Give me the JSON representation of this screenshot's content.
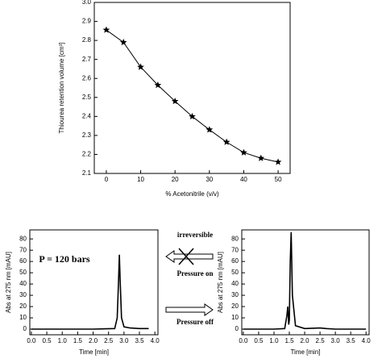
{
  "chart_data": [
    {
      "type": "line",
      "marker": "star",
      "xlabel": "% Acetonitrile  (v/v)",
      "ylabel": "Thiourea retention volume  [cm³]",
      "x": [
        0,
        5,
        10,
        15,
        20,
        25,
        30,
        35,
        40,
        45,
        50
      ],
      "series": [
        {
          "color": "#000000",
          "values": [
            2.855,
            2.79,
            2.66,
            2.565,
            2.48,
            2.4,
            2.33,
            2.265,
            2.21,
            2.18,
            2.16
          ]
        }
      ],
      "xlim": [
        -3.5,
        53.5
      ],
      "xticks": [
        0,
        10,
        20,
        30,
        40,
        50
      ],
      "ylim": [
        2.1,
        3.0
      ],
      "yticks": [
        2.1,
        2.2,
        2.3,
        2.4,
        2.5,
        2.6,
        2.7,
        2.8,
        2.9,
        {
          "value": 3,
          "label": "3.0"
        }
      ],
      "grid": false
    },
    {
      "type": "line",
      "xlabel": "Time  [min]",
      "ylabel": "Abs at 275 nm  [mAU]",
      "annotation": "P = 120 bars",
      "x": [
        0,
        1,
        2,
        2.7,
        2.78,
        2.82,
        2.85,
        2.88,
        2.92,
        3.0,
        3.2,
        3.5,
        3.8
      ],
      "series": [
        {
          "color": "#000000",
          "values": [
            0,
            0,
            0,
            0.5,
            10,
            40,
            66,
            40,
            10,
            2,
            1,
            0.5,
            0.5
          ]
        }
      ],
      "xlim": [
        -0.05,
        4.1
      ],
      "xticks": [
        {
          "value": 0,
          "label": "0.0"
        },
        0.5,
        {
          "value": 1,
          "label": "1.0"
        },
        1.5,
        {
          "value": 2,
          "label": "2.0"
        },
        2.5,
        {
          "value": 3,
          "label": "3.0"
        },
        3.5,
        {
          "value": 4,
          "label": "4.0"
        }
      ],
      "ylim": [
        -5,
        88
      ],
      "yticks": [
        0,
        10,
        20,
        30,
        40,
        50,
        60,
        70,
        80
      ],
      "grid": false
    },
    {
      "type": "line",
      "xlabel": "Time  [min]",
      "ylabel": "Abs at 275 nm  [mAU]",
      "x": [
        0,
        1,
        1.35,
        1.42,
        1.45,
        1.48,
        1.5,
        1.53,
        1.56,
        1.6,
        1.7,
        2,
        2.5,
        2.7,
        3,
        4
      ],
      "series": [
        {
          "color": "#000000",
          "values": [
            0,
            0,
            0.5,
            12,
            20,
            4,
            8,
            60,
            86,
            30,
            3,
            0.5,
            1,
            0.5,
            0,
            0
          ]
        }
      ],
      "xlim": [
        -0.05,
        4.1
      ],
      "xticks": [
        {
          "value": 0,
          "label": "0.0"
        },
        0.5,
        {
          "value": 1,
          "label": "1.0"
        },
        1.5,
        {
          "value": 2,
          "label": "2.0"
        },
        2.5,
        {
          "value": 3,
          "label": "3.0"
        },
        3.5,
        {
          "value": 4,
          "label": "4.0"
        }
      ],
      "ylim": [
        -5,
        88
      ],
      "yticks": [
        0,
        10,
        20,
        30,
        40,
        50,
        60,
        70,
        80
      ],
      "grid": false
    }
  ],
  "middle": {
    "top_label": "irreversible",
    "upper_label": "Pressure on",
    "lower_label": "Pressure off"
  }
}
